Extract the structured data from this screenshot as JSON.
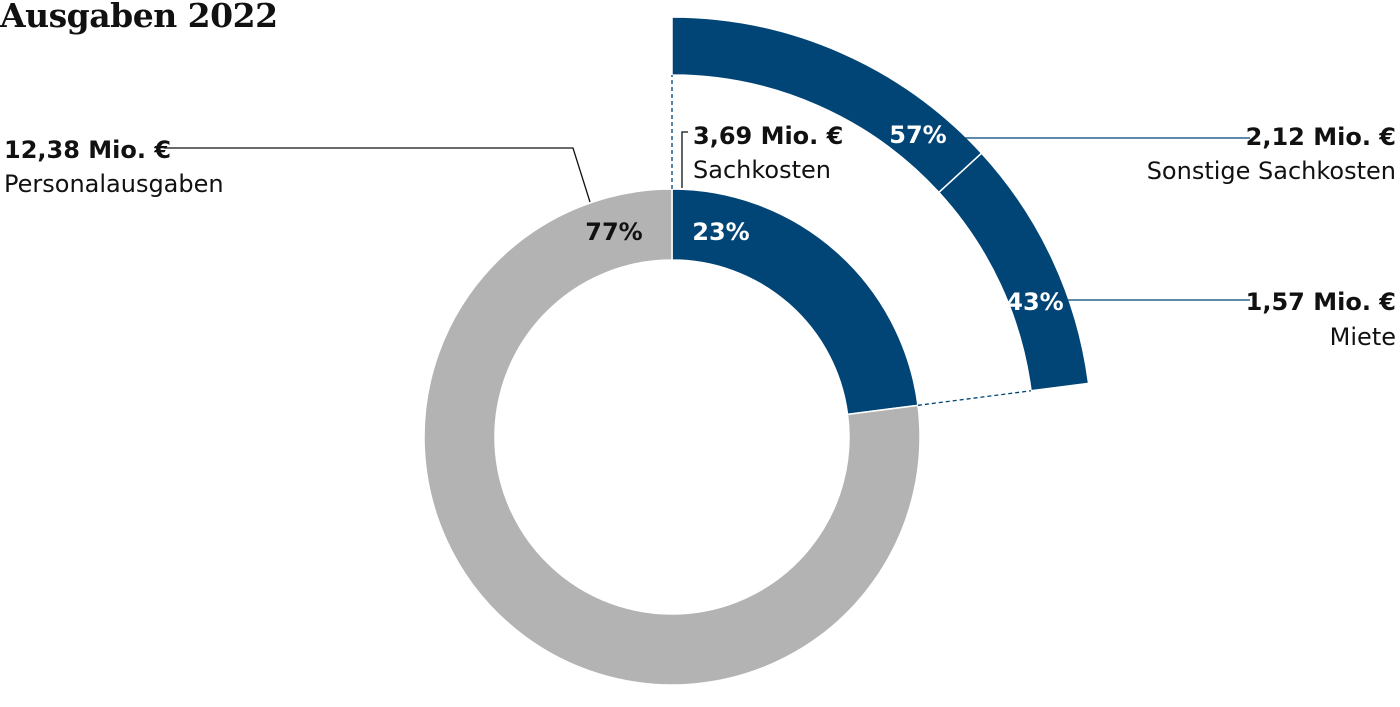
{
  "chart_data": {
    "type": "pie",
    "title": "Ausgaben 2022",
    "main": {
      "slices": [
        {
          "name": "Sachkosten",
          "value_label": "3,69 Mio. €",
          "value": 3.69,
          "share": 23,
          "share_label": "23%",
          "color": "#014576"
        },
        {
          "name": "Personalausgaben",
          "value_label": "12,38 Mio. €",
          "value": 12.38,
          "share": 77,
          "share_label": "77%",
          "color": "#b3b3b3"
        }
      ]
    },
    "breakdown": {
      "of": "Sachkosten",
      "slices": [
        {
          "name": "Sonstige Sachkosten",
          "value_label": "2,12 Mio. €",
          "value": 2.12,
          "share": 57,
          "share_label": "57%",
          "color": "#014576"
        },
        {
          "name": "Miete",
          "value_label": "1,57 Mio. €",
          "value": 1.57,
          "share": 43,
          "share_label": "43%",
          "color": "#014576"
        }
      ]
    }
  }
}
